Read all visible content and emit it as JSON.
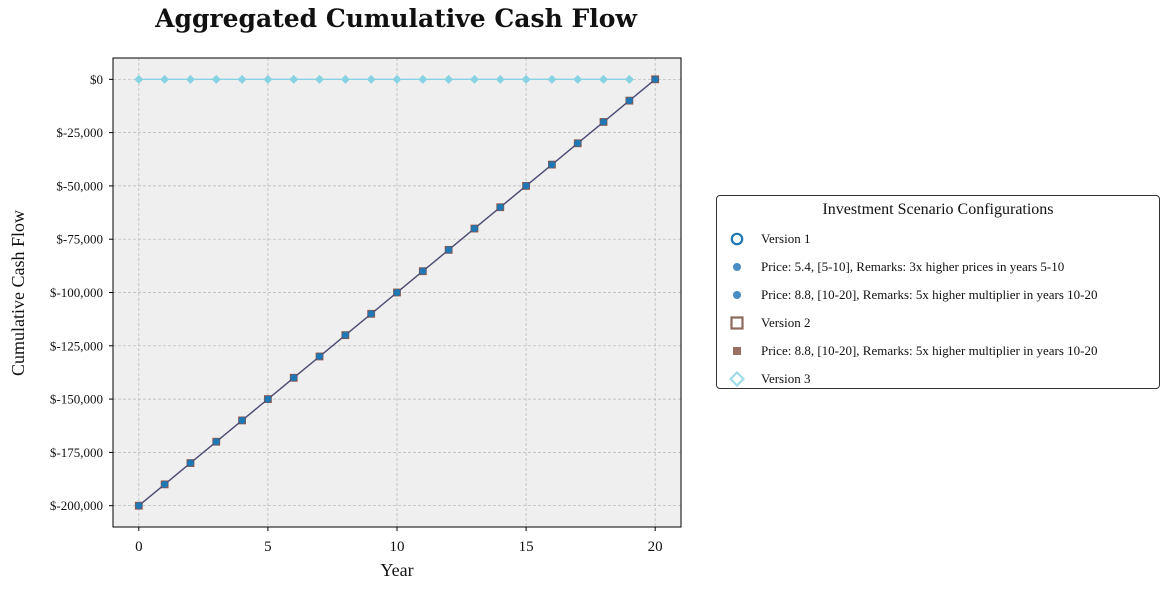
{
  "chart_data": {
    "type": "line",
    "title": "Aggregated Cumulative Cash Flow",
    "xlabel": "Year",
    "ylabel": "Cumulative Cash Flow",
    "xlim": [
      -1,
      21
    ],
    "ylim": [
      -210000,
      10000
    ],
    "x_ticks": [
      0,
      5,
      10,
      15,
      20
    ],
    "y_ticks": [
      0,
      -25000,
      -50000,
      -75000,
      -100000,
      -125000,
      -150000,
      -175000,
      -200000
    ],
    "y_tick_labels": [
      "$0",
      "$-25,000",
      "$-50,000",
      "$-75,000",
      "$-100,000",
      "$-125,000",
      "$-150,000",
      "$-175,000",
      "$-200,000"
    ],
    "grid": true,
    "legend_position": "right",
    "series": [
      {
        "name": "Version 2",
        "color": "#8c564b",
        "line_color": "#6e4f55",
        "marker": "square",
        "x": [
          0,
          1,
          2,
          3,
          4,
          5,
          6,
          7,
          8,
          9,
          10,
          11,
          12,
          13,
          14,
          15,
          16,
          17,
          18,
          19,
          20
        ],
        "y": [
          -200000,
          -190000,
          -180000,
          -170000,
          -160000,
          -150000,
          -140000,
          -130000,
          -120000,
          -110000,
          -100000,
          -90000,
          -80000,
          -70000,
          -60000,
          -50000,
          -40000,
          -30000,
          -20000,
          -10000,
          0
        ]
      },
      {
        "name": "Version 1",
        "color": "#1f77b4",
        "line_color": "#4a4f7a",
        "marker": "circle",
        "x": [
          0,
          1,
          2,
          3,
          4,
          5,
          6,
          7,
          8,
          9,
          10,
          11,
          12,
          13,
          14,
          15,
          16,
          17,
          18,
          19,
          20
        ],
        "y": [
          -200000,
          -190000,
          -180000,
          -170000,
          -160000,
          -150000,
          -140000,
          -130000,
          -120000,
          -110000,
          -100000,
          -90000,
          -80000,
          -70000,
          -60000,
          -50000,
          -40000,
          -30000,
          -20000,
          -10000,
          0
        ]
      },
      {
        "name": "Version 3",
        "color": "#87d3e3",
        "line_color": "#87d3e3",
        "marker": "diamond",
        "x": [
          0,
          1,
          2,
          3,
          4,
          5,
          6,
          7,
          8,
          9,
          10,
          11,
          12,
          13,
          14,
          15,
          16,
          17,
          18,
          19
        ],
        "y": [
          0,
          0,
          0,
          0,
          0,
          0,
          0,
          0,
          0,
          0,
          0,
          0,
          0,
          0,
          0,
          0,
          0,
          0,
          0,
          0
        ]
      }
    ],
    "legend": {
      "title": "Investment Scenario Configurations",
      "entries": [
        {
          "label": "Version 1",
          "marker": "circle-open",
          "color": "#1f77b4"
        },
        {
          "label": "Price: 5.4, [5-10], Remarks: 3x higher prices in years 5-10",
          "marker": "circle",
          "color": "#4a8cc4"
        },
        {
          "label": "Price: 8.8, [10-20], Remarks: 5x higher multiplier in years 10-20",
          "marker": "circle",
          "color": "#4a8cc4"
        },
        {
          "label": "Version 2",
          "marker": "square-open",
          "color": "#8c6a5e"
        },
        {
          "label": "Price: 8.8, [10-20], Remarks: 5x higher multiplier in years 10-20",
          "marker": "square",
          "color": "#9a6e63"
        },
        {
          "label": "Version 3",
          "marker": "diamond-open",
          "color": "#9fdbe8"
        }
      ]
    }
  }
}
